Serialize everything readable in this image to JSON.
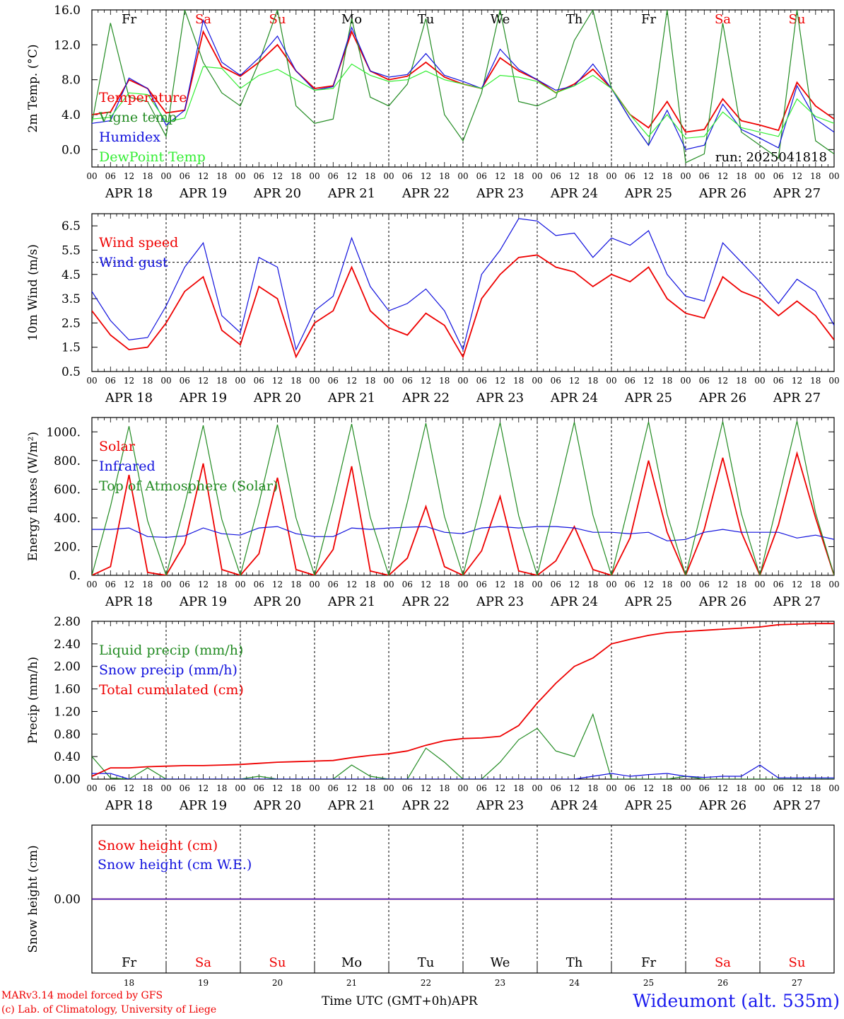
{
  "colors": {
    "red": "#ee0000",
    "green": "#228b22",
    "blue": "#1010dd",
    "lime": "#33ee33",
    "black": "#000000"
  },
  "days": [
    "APR 18",
    "APR 19",
    "APR 20",
    "APR 21",
    "APR 22",
    "APR 23",
    "APR 24",
    "APR 25",
    "APR 26",
    "APR 27"
  ],
  "day_numbers": [
    "18",
    "19",
    "20",
    "21",
    "22",
    "23",
    "24",
    "25",
    "26",
    "27"
  ],
  "month": "APR",
  "weekdays": [
    {
      "label": "Fr",
      "weekend": false
    },
    {
      "label": "Sa",
      "weekend": true
    },
    {
      "label": "Su",
      "weekend": true
    },
    {
      "label": "Mo",
      "weekend": false
    },
    {
      "label": "Tu",
      "weekend": false
    },
    {
      "label": "We",
      "weekend": false
    },
    {
      "label": "Th",
      "weekend": false
    },
    {
      "label": "Fr",
      "weekend": false
    },
    {
      "label": "Sa",
      "weekend": true
    },
    {
      "label": "Su",
      "weekend": true
    }
  ],
  "hour_ticks": [
    "00",
    "06",
    "12",
    "18"
  ],
  "footer": {
    "model": "MARv3.14 model forced by GFS",
    "lab": "(c) Lab. of Climatology, University of Liege",
    "xlabel": "Time UTC (GMT+0h)",
    "station": "Wideumont (alt. 535m)"
  },
  "chart_data": [
    {
      "type": "line",
      "ylabel": "2m Temp. (°C)",
      "ylim": [
        -2,
        16
      ],
      "yticks": [
        "0.0",
        "4.0",
        "8.0",
        "12.0",
        "16.0"
      ],
      "ytick_values": [
        0,
        4,
        8,
        12,
        16
      ],
      "annotation": "run: 2025041818",
      "x_unit": "hours since APR 18 00 UTC",
      "x": [
        0,
        6,
        12,
        18,
        24,
        30,
        36,
        42,
        48,
        54,
        60,
        66,
        72,
        78,
        84,
        90,
        96,
        102,
        108,
        114,
        120,
        126,
        132,
        138,
        144,
        150,
        156,
        162,
        168,
        174,
        180,
        186,
        192,
        198,
        204,
        210,
        216,
        222,
        228,
        234,
        240
      ],
      "series": [
        {
          "name": "Temperature",
          "color": "red",
          "values": [
            4.0,
            4.3,
            8.0,
            7.0,
            4.2,
            4.5,
            13.5,
            9.5,
            8.4,
            10.0,
            12.0,
            9.0,
            7.0,
            7.3,
            13.5,
            9.0,
            8.0,
            8.4,
            10.0,
            8.3,
            7.5,
            7.0,
            10.5,
            9.0,
            8.0,
            6.5,
            7.5,
            9.2,
            7.0,
            4.0,
            2.5,
            5.5,
            2.0,
            2.3,
            5.8,
            3.3,
            2.8,
            2.2,
            7.7,
            5.0,
            3.5
          ]
        },
        {
          "name": "Vigne temp",
          "color": "green",
          "values": [
            3.0,
            14.5,
            6.0,
            5.5,
            1.5,
            16.0,
            10.0,
            6.5,
            5.0,
            10.0,
            16.0,
            5.0,
            3.0,
            3.5,
            15.0,
            6.0,
            5.0,
            7.5,
            15.0,
            4.0,
            1.0,
            6.5,
            16.0,
            5.5,
            5.0,
            6.0,
            12.5,
            16.0,
            7.0,
            3.5,
            0.5,
            16.0,
            -1.5,
            -0.5,
            14.5,
            2.0,
            0.5,
            -1.0,
            16.0,
            1.0,
            -0.5
          ]
        },
        {
          "name": "Humidex",
          "color": "blue",
          "values": [
            3.0,
            3.3,
            8.2,
            7.0,
            2.8,
            4.5,
            14.8,
            10.0,
            8.5,
            10.5,
            13.0,
            9.0,
            6.8,
            7.2,
            14.0,
            9.0,
            8.3,
            8.6,
            11.0,
            8.5,
            7.8,
            7.0,
            11.5,
            9.2,
            8.0,
            6.8,
            7.3,
            9.8,
            7.0,
            3.5,
            0.5,
            4.5,
            0.0,
            0.5,
            5.2,
            2.3,
            1.3,
            0.2,
            7.3,
            3.5,
            2.0
          ]
        },
        {
          "name": "DewPoint Temp",
          "color": "lime",
          "values": [
            3.5,
            3.7,
            6.5,
            6.3,
            3.2,
            3.6,
            9.5,
            9.3,
            7.0,
            8.5,
            9.2,
            8.0,
            6.8,
            7.0,
            9.8,
            8.5,
            7.8,
            8.0,
            9.0,
            8.0,
            7.5,
            7.0,
            8.5,
            8.3,
            7.8,
            6.5,
            7.3,
            8.5,
            7.0,
            4.0,
            1.5,
            4.0,
            1.3,
            1.5,
            4.3,
            2.5,
            2.0,
            1.5,
            5.8,
            3.8,
            3.0
          ]
        }
      ]
    },
    {
      "type": "line",
      "ylabel": "10m Wind (m/s)",
      "ylim": [
        0.5,
        7.0
      ],
      "yticks": [
        "0.5",
        "1.5",
        "2.5",
        "3.5",
        "4.5",
        "5.5",
        "6.5"
      ],
      "ytick_values": [
        0.5,
        1.5,
        2.5,
        3.5,
        4.5,
        5.5,
        6.5
      ],
      "reference_line": 5.0,
      "x_unit": "hours since APR 18 00 UTC",
      "x": [
        0,
        6,
        12,
        18,
        24,
        30,
        36,
        42,
        48,
        54,
        60,
        66,
        72,
        78,
        84,
        90,
        96,
        102,
        108,
        114,
        120,
        126,
        132,
        138,
        144,
        150,
        156,
        162,
        168,
        174,
        180,
        186,
        192,
        198,
        204,
        210,
        216,
        222,
        228,
        234,
        240
      ],
      "series": [
        {
          "name": "Wind speed",
          "color": "red",
          "values": [
            3.0,
            2.0,
            1.4,
            1.5,
            2.5,
            3.8,
            4.4,
            2.2,
            1.6,
            4.0,
            3.5,
            1.1,
            2.5,
            3.0,
            4.8,
            3.0,
            2.3,
            2.0,
            2.9,
            2.4,
            1.1,
            3.5,
            4.5,
            5.2,
            5.3,
            4.8,
            4.6,
            4.0,
            4.5,
            4.2,
            4.8,
            3.5,
            2.9,
            2.7,
            4.4,
            3.8,
            3.5,
            2.8,
            3.4,
            2.8,
            1.8
          ]
        },
        {
          "name": "Wind gust",
          "color": "blue",
          "values": [
            3.8,
            2.6,
            1.8,
            1.9,
            3.2,
            4.8,
            5.8,
            2.8,
            2.1,
            5.2,
            4.8,
            1.4,
            3.0,
            3.6,
            6.0,
            4.0,
            3.0,
            3.3,
            3.9,
            3.0,
            1.4,
            4.5,
            5.5,
            6.8,
            6.7,
            6.1,
            6.2,
            5.2,
            6.0,
            5.7,
            6.3,
            4.5,
            3.6,
            3.4,
            5.8,
            5.0,
            4.2,
            3.3,
            4.3,
            3.8,
            2.4
          ]
        }
      ]
    },
    {
      "type": "line",
      "ylabel": "Energy fluxes (W/m²)",
      "ylim": [
        0,
        1100
      ],
      "yticks": [
        "0.",
        "200.",
        "400.",
        "600.",
        "800.",
        "1000."
      ],
      "ytick_values": [
        0,
        200,
        400,
        600,
        800,
        1000
      ],
      "x_unit": "hours since APR 18 00 UTC",
      "x": [
        0,
        6,
        12,
        18,
        24,
        30,
        36,
        42,
        48,
        54,
        60,
        66,
        72,
        78,
        84,
        90,
        96,
        102,
        108,
        114,
        120,
        126,
        132,
        138,
        144,
        150,
        156,
        162,
        168,
        174,
        180,
        186,
        192,
        198,
        204,
        210,
        216,
        222,
        228,
        234,
        240
      ],
      "series": [
        {
          "name": "Solar",
          "color": "red",
          "values": [
            0,
            60,
            700,
            20,
            0,
            220,
            780,
            40,
            0,
            150,
            680,
            40,
            0,
            180,
            760,
            30,
            0,
            120,
            480,
            60,
            0,
            170,
            550,
            30,
            0,
            100,
            340,
            40,
            0,
            260,
            800,
            300,
            0,
            320,
            820,
            300,
            0,
            350,
            850,
            400,
            0
          ]
        },
        {
          "name": "Infrared",
          "color": "blue",
          "values": [
            320,
            320,
            330,
            270,
            265,
            275,
            330,
            290,
            280,
            330,
            340,
            290,
            270,
            270,
            330,
            320,
            330,
            335,
            340,
            300,
            290,
            330,
            340,
            330,
            340,
            340,
            330,
            300,
            300,
            290,
            300,
            240,
            250,
            300,
            320,
            300,
            300,
            300,
            260,
            280,
            250
          ]
        },
        {
          "name": "Top of Atmosphere (Solar)",
          "color": "green",
          "values": [
            0,
            480,
            1040,
            380,
            0,
            490,
            1045,
            390,
            0,
            500,
            1050,
            400,
            0,
            505,
            1055,
            405,
            0,
            510,
            1060,
            410,
            0,
            515,
            1065,
            415,
            0,
            520,
            1068,
            420,
            0,
            525,
            1070,
            425,
            0,
            530,
            1072,
            430,
            0,
            535,
            1075,
            435,
            0
          ]
        }
      ]
    },
    {
      "type": "line",
      "ylabel": "Precip (mm/h)",
      "ylim": [
        0,
        2.8
      ],
      "yticks": [
        "0.00",
        "0.40",
        "0.80",
        "1.20",
        "1.60",
        "2.00",
        "2.40",
        "2.80"
      ],
      "ytick_values": [
        0,
        0.4,
        0.8,
        1.2,
        1.6,
        2.0,
        2.4,
        2.8
      ],
      "x_unit": "hours since APR 18 00 UTC",
      "x": [
        0,
        6,
        12,
        18,
        24,
        30,
        36,
        42,
        48,
        54,
        60,
        66,
        72,
        78,
        84,
        90,
        96,
        102,
        108,
        114,
        120,
        126,
        132,
        138,
        144,
        150,
        156,
        162,
        168,
        174,
        180,
        186,
        192,
        198,
        204,
        210,
        216,
        222,
        228,
        234,
        240
      ],
      "series": [
        {
          "name": "Liquid precip (mm/h)",
          "color": "green",
          "values": [
            0.4,
            0.02,
            0.0,
            0.2,
            0.0,
            0.0,
            0.0,
            0.0,
            0.0,
            0.05,
            0.0,
            0.0,
            0.0,
            0.0,
            0.25,
            0.05,
            0.0,
            0.0,
            0.55,
            0.3,
            0.0,
            0.0,
            0.3,
            0.7,
            0.9,
            0.5,
            0.4,
            1.15,
            0.0,
            0.0,
            0.0,
            0.0,
            0.05,
            0.0,
            0.0,
            0.0,
            0.0,
            0.0,
            0.0,
            0.0,
            0.0
          ]
        },
        {
          "name": "Snow precip (mm/h)",
          "color": "blue",
          "values": [
            0.1,
            0.1,
            0.0,
            0.0,
            0.0,
            0.0,
            0.0,
            0.0,
            0.0,
            0.0,
            0.0,
            0.0,
            0.0,
            0.0,
            0.0,
            0.0,
            0.0,
            0.0,
            0.0,
            0.0,
            0.0,
            0.0,
            0.0,
            0.0,
            0.0,
            0.0,
            0.0,
            0.05,
            0.1,
            0.05,
            0.08,
            0.1,
            0.05,
            0.03,
            0.05,
            0.05,
            0.25,
            0.02,
            0.02,
            0.02,
            0.02
          ]
        },
        {
          "name": "Total cumulated (cm)",
          "color": "red",
          "values": [
            0.05,
            0.2,
            0.2,
            0.22,
            0.23,
            0.24,
            0.24,
            0.25,
            0.26,
            0.28,
            0.3,
            0.31,
            0.32,
            0.33,
            0.38,
            0.42,
            0.45,
            0.5,
            0.6,
            0.68,
            0.72,
            0.73,
            0.76,
            0.95,
            1.35,
            1.7,
            2.0,
            2.15,
            2.4,
            2.48,
            2.55,
            2.6,
            2.62,
            2.64,
            2.66,
            2.68,
            2.7,
            2.74,
            2.75,
            2.76,
            2.76
          ]
        }
      ]
    },
    {
      "type": "line",
      "ylabel": "Snow height (cm)",
      "ylim": [
        -1,
        1
      ],
      "yticks": [
        "0.00"
      ],
      "ytick_values": [
        0
      ],
      "x_unit": "hours since APR 18 00 UTC",
      "x": [
        0,
        240
      ],
      "series": [
        {
          "name": "Snow height (cm)",
          "color": "red",
          "values": [
            0,
            0
          ]
        },
        {
          "name": "Snow height (cm W.E.)",
          "color": "blue",
          "values": [
            0,
            0
          ]
        }
      ]
    }
  ]
}
